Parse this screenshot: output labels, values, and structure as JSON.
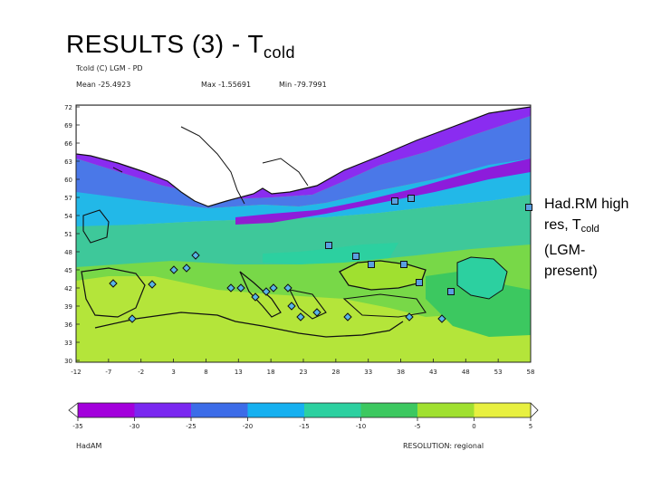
{
  "slide": {
    "title_main": "RESULTS (3) - T",
    "title_sub": "cold"
  },
  "map_header": {
    "variable": "Tcold (C)   LGM - PD",
    "mean": "Mean -25.4923",
    "max": "Max -1.55691",
    "min": "Min -79.7991"
  },
  "side_note": {
    "line1": "Had.RM high",
    "line2_pre": "res, T",
    "line2_sub": "cold",
    "line3": "(LGM-",
    "line4": "present)"
  },
  "footer": {
    "model": "HadAM",
    "resolution": "RESOLUTION: regional"
  },
  "colors": {
    "land_ice": "#ffffff",
    "outline": "#111111",
    "proxy_square": "#5aa0e0",
    "proxy_diamond": "#58b6e8"
  },
  "chart_data": {
    "type": "heatmap",
    "title": "Tcold (C)   LGM - PD",
    "x_ticks": [
      "-12",
      "-7",
      "-2",
      "3",
      "8",
      "13",
      "18",
      "23",
      "28",
      "33",
      "38",
      "43",
      "48",
      "53",
      "58"
    ],
    "y_ticks": [
      "72",
      "69",
      "66",
      "63",
      "60",
      "57",
      "54",
      "51",
      "48",
      "45",
      "42",
      "39",
      "36",
      "33",
      "30"
    ],
    "xlim": [
      -12,
      58
    ],
    "ylim": [
      30,
      72
    ],
    "colorbar": {
      "ticks": [
        "-35",
        "-30",
        "-25",
        "-20",
        "-15",
        "-10",
        "-5",
        "0",
        "5"
      ],
      "range": [
        -35,
        5
      ],
      "colors": [
        "#a300dc",
        "#7a28f0",
        "#3c6ce8",
        "#16b0f0",
        "#2cd0a0",
        "#3cc860",
        "#a0e030",
        "#e8f040"
      ]
    }
  }
}
